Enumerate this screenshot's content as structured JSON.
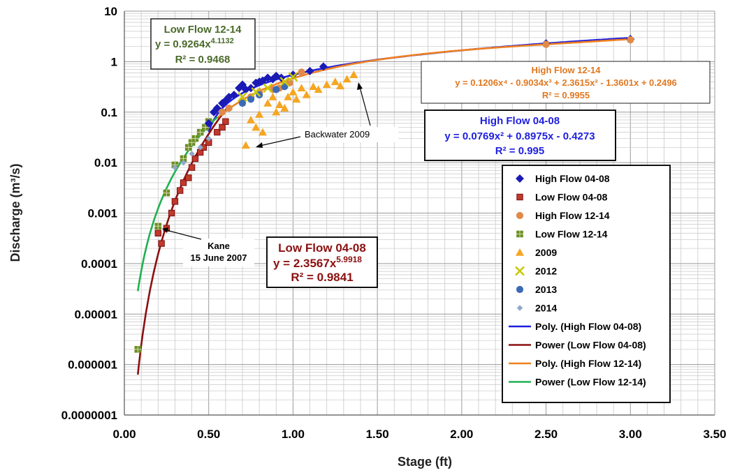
{
  "chart_data": {
    "type": "scatter",
    "xlabel": "Stage (ft)",
    "ylabel": "Discharge (m³/s)",
    "xlim": [
      0,
      3.5
    ],
    "ylim_log10": [
      -7,
      1
    ],
    "y_scale": "log",
    "grid": true,
    "x_ticks": [
      "0.00",
      "0.50",
      "1.00",
      "1.50",
      "2.00",
      "2.50",
      "3.00",
      "3.50"
    ],
    "y_ticks": [
      "10",
      "1",
      "0.1",
      "0.01",
      "0.001",
      "0.0001",
      "0.00001",
      "0.000001",
      "0.0000001"
    ],
    "legend_placement": "right",
    "legend": [
      {
        "label": "High Flow 04-08",
        "marker": "diamond",
        "color": "#1a1ab5"
      },
      {
        "label": "Low Flow 04-08",
        "marker": "square",
        "color": "#c0392b"
      },
      {
        "label": "High Flow 12-14",
        "marker": "circle",
        "color": "#e08a4a"
      },
      {
        "label": "Low Flow 12-14",
        "marker": "square-cross",
        "color": "#6b8e23"
      },
      {
        "label": "2009",
        "marker": "triangle",
        "color": "#f5a623"
      },
      {
        "label": "2012",
        "marker": "x",
        "color": "#c8c800"
      },
      {
        "label": "2013",
        "marker": "circle",
        "color": "#3b6bb5"
      },
      {
        "label": "2014",
        "marker": "diamond-small",
        "color": "#8fa8c8"
      },
      {
        "label": "Poly. (High Flow 04-08)",
        "marker": "line",
        "color": "#1f1fe0"
      },
      {
        "label": "Power (Low Flow 04-08)",
        "marker": "line",
        "color": "#8b1010"
      },
      {
        "label": "Poly. (High Flow 12-14)",
        "marker": "line",
        "color": "#f08020"
      },
      {
        "label": "Power (Low Flow 12-14)",
        "marker": "line",
        "color": "#20b050"
      }
    ],
    "series": [
      {
        "name": "High Flow 04-08",
        "points": [
          [
            0.5,
            0.06
          ],
          [
            0.53,
            0.1
          ],
          [
            0.55,
            0.12
          ],
          [
            0.58,
            0.15
          ],
          [
            0.6,
            0.17
          ],
          [
            0.62,
            0.2
          ],
          [
            0.65,
            0.22
          ],
          [
            0.68,
            0.3
          ],
          [
            0.7,
            0.35
          ],
          [
            0.72,
            0.28
          ],
          [
            0.75,
            0.3
          ],
          [
            0.78,
            0.38
          ],
          [
            0.8,
            0.4
          ],
          [
            0.82,
            0.42
          ],
          [
            0.85,
            0.48
          ],
          [
            0.88,
            0.45
          ],
          [
            0.9,
            0.52
          ],
          [
            0.93,
            0.48
          ],
          [
            1.0,
            0.55
          ],
          [
            1.1,
            0.65
          ],
          [
            1.18,
            0.8
          ],
          [
            2.5,
            2.3
          ],
          [
            3.0,
            2.8
          ]
        ]
      },
      {
        "name": "Low Flow 04-08",
        "points": [
          [
            0.2,
            0.0004
          ],
          [
            0.22,
            0.00025
          ],
          [
            0.25,
            0.0005
          ],
          [
            0.28,
            0.001
          ],
          [
            0.3,
            0.0017
          ],
          [
            0.33,
            0.0028
          ],
          [
            0.35,
            0.004
          ],
          [
            0.38,
            0.005
          ],
          [
            0.4,
            0.008
          ],
          [
            0.42,
            0.012
          ],
          [
            0.45,
            0.016
          ],
          [
            0.47,
            0.02
          ],
          [
            0.5,
            0.025
          ],
          [
            0.55,
            0.04
          ],
          [
            0.58,
            0.05
          ],
          [
            0.6,
            0.065
          ]
        ]
      },
      {
        "name": "High Flow 12-14",
        "points": [
          [
            0.58,
            0.1
          ],
          [
            0.62,
            0.12
          ],
          [
            0.7,
            0.17
          ],
          [
            0.75,
            0.2
          ],
          [
            0.8,
            0.25
          ],
          [
            0.88,
            0.28
          ],
          [
            0.92,
            0.3
          ],
          [
            0.98,
            0.38
          ],
          [
            1.05,
            0.62
          ],
          [
            2.5,
            2.2
          ],
          [
            3.0,
            2.7
          ]
        ]
      },
      {
        "name": "Low Flow 12-14",
        "points": [
          [
            0.08,
            2e-06
          ],
          [
            0.2,
            0.00055
          ],
          [
            0.25,
            0.0025
          ],
          [
            0.3,
            0.009
          ],
          [
            0.35,
            0.012
          ],
          [
            0.38,
            0.02
          ],
          [
            0.4,
            0.025
          ],
          [
            0.42,
            0.03
          ],
          [
            0.45,
            0.04
          ],
          [
            0.48,
            0.05
          ],
          [
            0.5,
            0.065
          ]
        ]
      },
      {
        "name": "2009",
        "points": [
          [
            0.72,
            0.022
          ],
          [
            0.75,
            0.07
          ],
          [
            0.78,
            0.05
          ],
          [
            0.8,
            0.09
          ],
          [
            0.82,
            0.04
          ],
          [
            0.85,
            0.15
          ],
          [
            0.88,
            0.2
          ],
          [
            0.9,
            0.1
          ],
          [
            0.92,
            0.14
          ],
          [
            0.95,
            0.12
          ],
          [
            0.97,
            0.2
          ],
          [
            1.0,
            0.25
          ],
          [
            1.02,
            0.18
          ],
          [
            1.05,
            0.3
          ],
          [
            1.08,
            0.22
          ],
          [
            1.12,
            0.32
          ],
          [
            1.15,
            0.28
          ],
          [
            1.2,
            0.35
          ],
          [
            1.25,
            0.4
          ],
          [
            1.28,
            0.33
          ],
          [
            1.32,
            0.45
          ],
          [
            1.36,
            0.55
          ]
        ]
      },
      {
        "name": "2012",
        "points": [
          [
            0.7,
            0.2
          ],
          [
            0.78,
            0.25
          ],
          [
            0.85,
            0.3
          ],
          [
            0.95,
            0.4
          ],
          [
            1.0,
            0.5
          ]
        ]
      },
      {
        "name": "2013",
        "points": [
          [
            0.7,
            0.15
          ],
          [
            0.75,
            0.18
          ],
          [
            0.8,
            0.22
          ],
          [
            0.9,
            0.28
          ],
          [
            0.95,
            0.32
          ]
        ]
      },
      {
        "name": "2014",
        "points": [
          [
            0.3,
            0.008
          ],
          [
            0.35,
            0.01
          ],
          [
            0.4,
            0.015
          ],
          [
            0.45,
            0.02
          ],
          [
            0.5,
            0.03
          ]
        ]
      }
    ],
    "trendlines": [
      {
        "name": "Poly. (High Flow 04-08)",
        "kind": "poly",
        "coeffs": [
          -0.4273,
          0.8975,
          0.0769
        ],
        "x_range": [
          0.5,
          3.0
        ]
      },
      {
        "name": "Power (Low Flow 04-08)",
        "kind": "power",
        "a": 2.3567,
        "b": 5.9918,
        "x_range": [
          0.08,
          0.62
        ]
      },
      {
        "name": "Poly. (High Flow 12-14)",
        "kind": "poly",
        "coeffs": [
          0.2496,
          -1.3601,
          2.3615,
          -0.9034,
          0.1206
        ],
        "x_range": [
          0.55,
          3.0
        ]
      },
      {
        "name": "Power (Low Flow 12-14)",
        "kind": "power",
        "a": 0.9264,
        "b": 4.1132,
        "x_range": [
          0.08,
          0.55
        ]
      }
    ],
    "annotations": {
      "low_flow_12_14": {
        "title": "Low Flow 12-14",
        "equation_base": "y = 0.9264x",
        "equation_exp": "4.1132",
        "r2": "R² = 0.9468",
        "color": "#4a6a2a"
      },
      "high_flow_12_14": {
        "title": "High Flow 12-14",
        "equation": "y = 0.1206x⁴ - 0.9034x³ + 2.3615x² - 1.3601x + 0.2496",
        "r2": "R² = 0.9955",
        "color": "#e07820"
      },
      "high_flow_04_08": {
        "title": "High Flow 04-08",
        "equation": "y = 0.0769x² + 0.8975x - 0.4273",
        "r2": "R² = 0.995",
        "color": "#1f1fe0"
      },
      "low_flow_04_08": {
        "title": "Low Flow 04-08",
        "equation_base": "y = 2.3567x",
        "equation_exp": "5.9918",
        "r2": "R² = 0.9841",
        "color": "#8b1010"
      },
      "backwater": {
        "label": "Backwater 2009"
      },
      "kane": {
        "line1": "Kane",
        "line2": "15 June 2007"
      }
    }
  }
}
